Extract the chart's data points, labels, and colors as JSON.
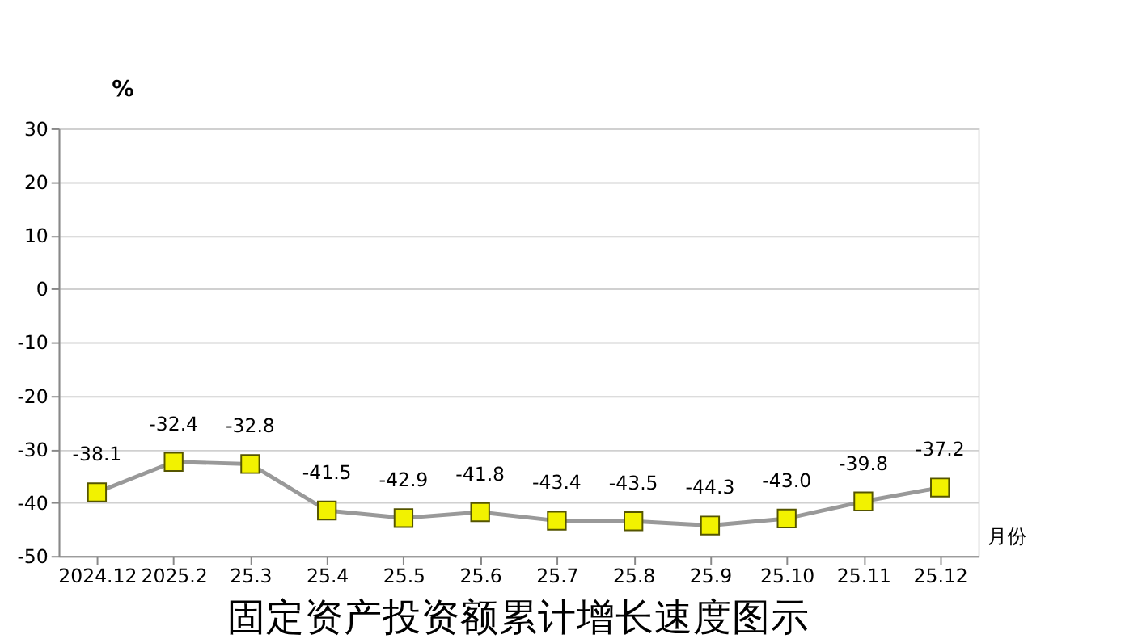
{
  "chart_data": {
    "type": "line",
    "title": "固定资产投资额累计增长速度图示",
    "ylabel": "%",
    "xlabel": "月份",
    "categories": [
      "2024.12",
      "2025.2",
      "25.3",
      "25.4",
      "25.5",
      "25.6",
      "25.7",
      "25.8",
      "25.9",
      "25.10",
      "25.11",
      "25.12"
    ],
    "series": [
      {
        "color": "#999999",
        "values": [
          -38.1,
          -32.4,
          -32.8,
          -41.5,
          -42.9,
          -41.8,
          -43.4,
          -43.5,
          -44.3,
          -43.0,
          -39.8,
          -37.2
        ]
      }
    ],
    "value_labels": [
      "-38.1",
      "-32.4",
      "-32.8",
      "-41.5",
      "-42.9",
      "-41.8",
      "-43.4",
      "-43.5",
      "-44.3",
      "-43.0",
      "-39.8",
      "-37.2"
    ],
    "ylim": [
      -50,
      30
    ],
    "yticks": [
      -50,
      -40,
      -30,
      -20,
      -10,
      0,
      10,
      20,
      30
    ],
    "grid": "y",
    "marker": "square",
    "line_style": "solid"
  }
}
